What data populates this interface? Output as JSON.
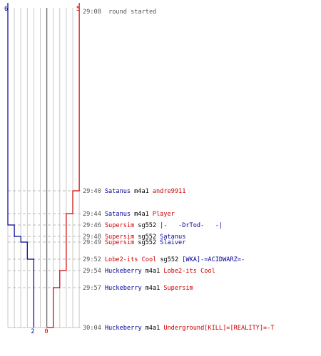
{
  "colors": {
    "blue": "#000099",
    "red": "#cc0000",
    "time": "#555555",
    "weapon": "#000000",
    "grid": "#c8c8c8",
    "dash": "#bbbbbb",
    "center": "#666666"
  },
  "scores": {
    "blue_start": "6",
    "red_start": "5",
    "blue_end": "2",
    "red_end": "0"
  },
  "timeline": {
    "start_sec": 548,
    "end_sec": 604,
    "start_text": "29:08",
    "start_label": "round started",
    "events": [
      {
        "time": "29:40",
        "sec": 580,
        "killer": "Satanus",
        "killer_team": "blue",
        "weapon": "m4a1",
        "victim": "andre9911",
        "victim_team": "red"
      },
      {
        "time": "29:44",
        "sec": 584,
        "killer": "Satanus",
        "killer_team": "blue",
        "weapon": "m4a1",
        "victim": "Player",
        "victim_team": "red"
      },
      {
        "time": "29:46",
        "sec": 586,
        "killer": "Supersim",
        "killer_team": "red",
        "weapon": "sg552",
        "victim": "|-   -DrTod-   -|",
        "victim_team": "blue"
      },
      {
        "time": "29:48",
        "sec": 588,
        "killer": "Supersim",
        "killer_team": "red",
        "weapon": "sg552",
        "victim": "Satanus",
        "victim_team": "blue"
      },
      {
        "time": "29:49",
        "sec": 589,
        "killer": "Supersim",
        "killer_team": "red",
        "weapon": "sg552",
        "victim": "Slaiver",
        "victim_team": "blue"
      },
      {
        "time": "29:52",
        "sec": 592,
        "killer": "Lobe2-its Cool",
        "killer_team": "red",
        "weapon": "sg552",
        "victim": "[WKA]-=ACIDWARZ=-",
        "victim_team": "blue"
      },
      {
        "time": "29:54",
        "sec": 594,
        "killer": "Huckeberry",
        "killer_team": "blue",
        "weapon": "m4a1",
        "victim": "Lobe2-its Cool",
        "victim_team": "red"
      },
      {
        "time": "29:57",
        "sec": 597,
        "killer": "Huckeberry",
        "killer_team": "blue",
        "weapon": "m4a1",
        "victim": "Supersim",
        "victim_team": "red"
      },
      {
        "time": "30:04",
        "sec": 604,
        "killer": "Huckeberry",
        "killer_team": "blue",
        "weapon": "m4a1",
        "victim": "Underground[KILL]=[REALITY]=-T",
        "victim_team": "red"
      }
    ]
  }
}
